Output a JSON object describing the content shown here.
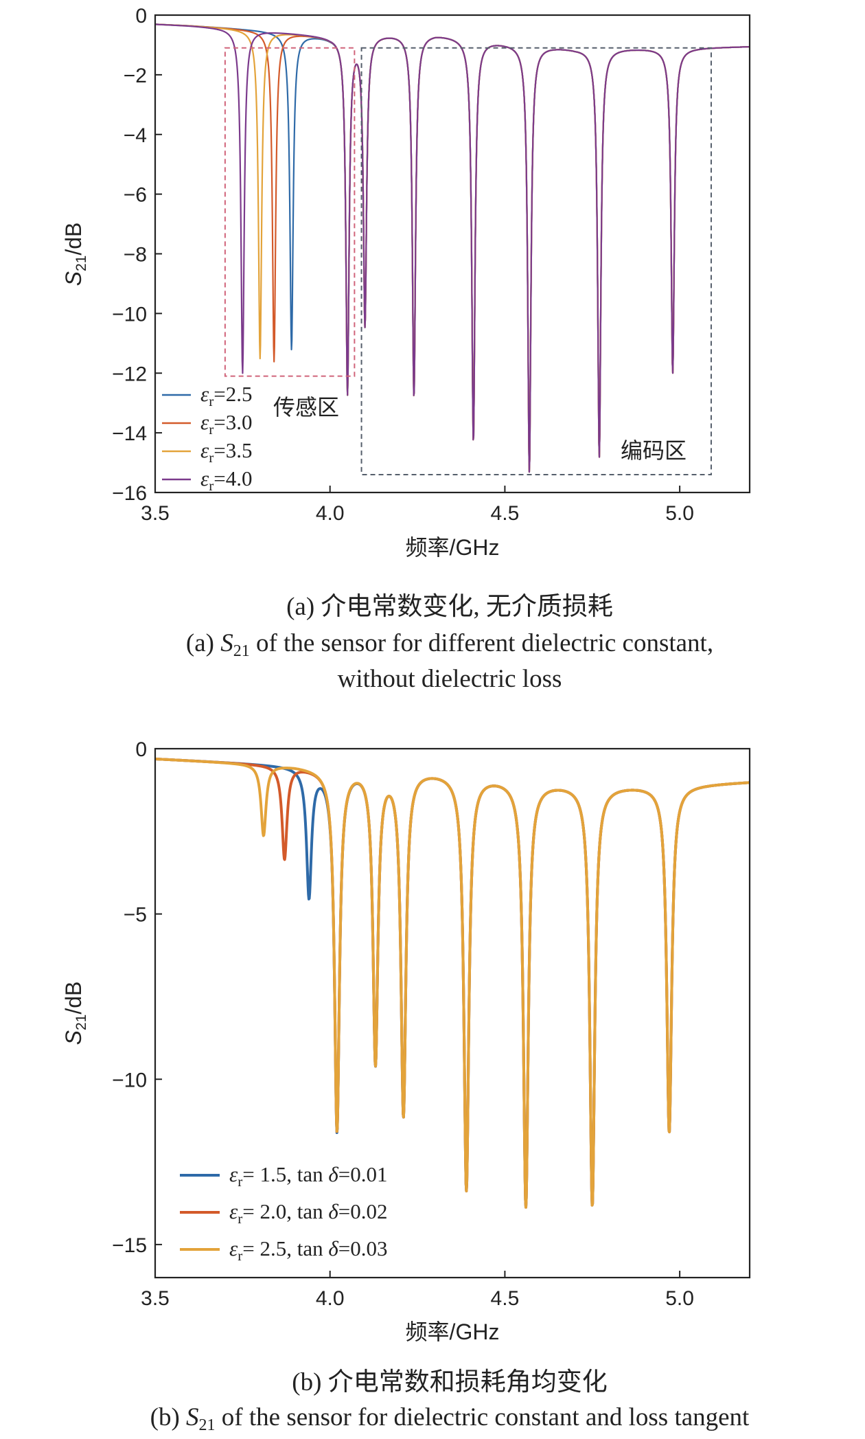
{
  "chart_data": [
    {
      "type": "line",
      "panel": "a",
      "xlabel": "频率/GHz",
      "ylabel": "S21/dB",
      "ylabel_parts": {
        "base": "S",
        "sub": "21",
        "unit": "/dB"
      },
      "xlim": [
        3.5,
        5.2
      ],
      "ylim": [
        -16,
        0
      ],
      "xticks": [
        3.5,
        4.0,
        4.5,
        5.0
      ],
      "xtick_labels": [
        "3.5",
        "4.0",
        "4.5",
        "5.0"
      ],
      "yticks": [
        0,
        -2,
        -4,
        -6,
        -8,
        -10,
        -12,
        -14,
        -16
      ],
      "ytick_labels": [
        "0",
        "−2",
        "−4",
        "−6",
        "−8",
        "−10",
        "−12",
        "−14",
        "−16"
      ],
      "grid": false,
      "legend_position": "bottom-left",
      "baseline": {
        "x": [
          3.5,
          3.6,
          3.7,
          3.8,
          4.0,
          4.1,
          4.3,
          4.5,
          4.7,
          4.9,
          5.0,
          5.2
        ],
        "y": [
          -0.3,
          -0.35,
          -0.42,
          -0.5,
          -0.7,
          -0.6,
          -0.6,
          -0.9,
          -1.1,
          -1.1,
          -1.1,
          -1.05
        ]
      },
      "common_resonances": [
        {
          "x": 4.05,
          "y": -12.6
        },
        {
          "x": 4.1,
          "y": -10.3
        },
        {
          "x": 4.24,
          "y": -12.8
        },
        {
          "x": 4.41,
          "y": -14.3
        },
        {
          "x": 4.57,
          "y": -15.3
        },
        {
          "x": 4.77,
          "y": -14.8
        },
        {
          "x": 4.98,
          "y": -12.0
        }
      ],
      "series": [
        {
          "name": "εr=2.5",
          "legend_base": "ε",
          "legend_sub": "r",
          "legend_value": "=2.5",
          "color": "#2e6aa8",
          "sensing_dip": {
            "x": 3.89,
            "y": -11.2
          }
        },
        {
          "name": "εr=3.0",
          "legend_base": "ε",
          "legend_sub": "r",
          "legend_value": "=3.0",
          "color": "#d35a2a",
          "sensing_dip": {
            "x": 3.84,
            "y": -11.6
          }
        },
        {
          "name": "εr=3.5",
          "legend_base": "ε",
          "legend_sub": "r",
          "legend_value": "=3.5",
          "color": "#e3a33a",
          "sensing_dip": {
            "x": 3.8,
            "y": -11.5
          }
        },
        {
          "name": "εr=4.0",
          "legend_base": "ε",
          "legend_sub": "r",
          "legend_value": "=4.0",
          "color": "#7b3a8c",
          "sensing_dip": {
            "x": 3.75,
            "y": -12.0
          }
        }
      ],
      "annotations": [
        {
          "text": "传感区",
          "box_x": [
            3.7,
            4.07
          ],
          "box_y": [
            -12.1,
            -1.1
          ],
          "color": "#d0647a"
        },
        {
          "text": "编码区",
          "box_x": [
            4.09,
            5.09
          ],
          "box_y": [
            -15.4,
            -1.1
          ],
          "color": "#555e6b"
        }
      ],
      "caption_cn": "(a) 介电常数变化, 无介质损耗",
      "caption_en_prefix": "(a) ",
      "caption_en_symbol": "S",
      "caption_en_sub": "21",
      "caption_en_rest": " of the sensor for different dielectric constant,",
      "caption_en_line2": "without dielectric loss"
    },
    {
      "type": "line",
      "panel": "b",
      "xlabel": "频率/GHz",
      "ylabel": "S21/dB",
      "ylabel_parts": {
        "base": "S",
        "sub": "21",
        "unit": "/dB"
      },
      "xlim": [
        3.5,
        5.2
      ],
      "ylim": [
        -16,
        0
      ],
      "xticks": [
        3.5,
        4.0,
        4.5,
        5.0
      ],
      "xtick_labels": [
        "3.5",
        "4.0",
        "4.5",
        "5.0"
      ],
      "yticks": [
        0,
        -5,
        -10,
        -15
      ],
      "ytick_labels": [
        "0",
        "−5",
        "−10",
        "−15"
      ],
      "grid": false,
      "legend_position": "bottom-left",
      "baseline": {
        "x": [
          3.5,
          3.7,
          3.8,
          3.9,
          4.0,
          4.1,
          4.2,
          4.4,
          4.6,
          4.8,
          5.0,
          5.2
        ],
        "y": [
          -0.3,
          -0.4,
          -0.45,
          -0.5,
          -0.6,
          -0.5,
          -0.55,
          -0.75,
          -1.0,
          -1.1,
          -1.1,
          -1.0
        ]
      },
      "common_resonances": [
        {
          "x": 4.02,
          "y": -11.5
        },
        {
          "x": 4.13,
          "y": -9.4
        },
        {
          "x": 4.21,
          "y": -11.0
        },
        {
          "x": 4.39,
          "y": -13.3
        },
        {
          "x": 4.56,
          "y": -13.8
        },
        {
          "x": 4.75,
          "y": -13.8
        },
        {
          "x": 4.97,
          "y": -11.6
        }
      ],
      "series": [
        {
          "name": "εr= 1.5, tan δ=0.01",
          "legend_base": "ε",
          "legend_sub": "r",
          "legend_value": "= 1.5, tan ",
          "legend_delta": "δ",
          "legend_loss": "=0.01",
          "color": "#2e6aa8",
          "sensing_dip": {
            "x": 3.94,
            "y": -4.4
          }
        },
        {
          "name": "εr= 2.0, tan δ=0.02",
          "legend_base": "ε",
          "legend_sub": "r",
          "legend_value": "= 2.0, tan ",
          "legend_delta": "δ",
          "legend_loss": "=0.02",
          "color": "#d35a2a",
          "sensing_dip": {
            "x": 3.87,
            "y": -3.3
          }
        },
        {
          "name": "εr= 2.5, tan δ=0.03",
          "legend_base": "ε",
          "legend_sub": "r",
          "legend_value": "= 2.5, tan ",
          "legend_delta": "δ",
          "legend_loss": "=0.03",
          "color": "#e3a33a",
          "sensing_dip": {
            "x": 3.81,
            "y": -2.6
          }
        }
      ],
      "caption_cn": "(b) 介电常数和损耗角均变化",
      "caption_en_prefix": "(b) ",
      "caption_en_symbol": "S",
      "caption_en_sub": "21",
      "caption_en_rest": " of the sensor for dielectric constant and loss tangent"
    }
  ]
}
